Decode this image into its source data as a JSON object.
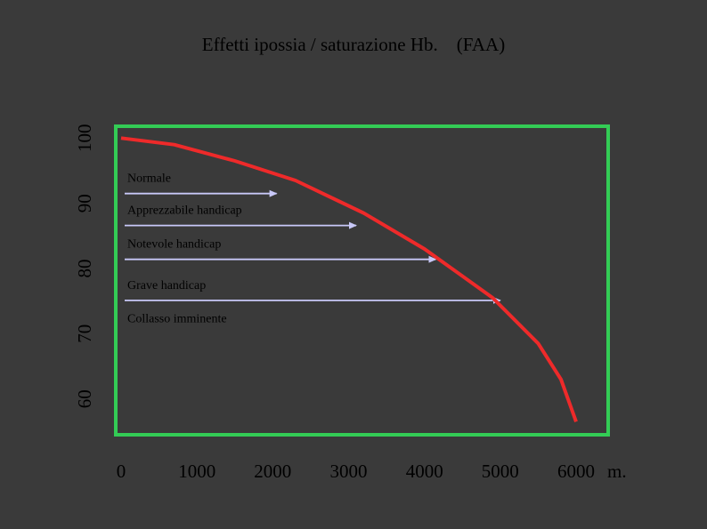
{
  "chart_data": {
    "type": "line",
    "title": "Effetti ipossia / saturazione Hb.    (FAA)",
    "x_unit": "m.",
    "x_ticks": [
      0,
      1000,
      2000,
      3000,
      4000,
      5000,
      6000
    ],
    "y_ticks": [
      60,
      70,
      80,
      90,
      100
    ],
    "xlim": [
      0,
      6000
    ],
    "ylim": [
      56,
      101
    ],
    "series": [
      {
        "x": [
          0,
          700,
          1500,
          2300,
          3200,
          4000,
          4900,
          5500,
          5800,
          6000
        ],
        "values": [
          100,
          99,
          96.5,
          93.5,
          88.5,
          83,
          75.5,
          68.5,
          63,
          56.5
        ]
      }
    ],
    "annotations": [
      {
        "label": "Normale",
        "arrow_to_x": 2050,
        "y": 91.5
      },
      {
        "label": "Apprezzabile handicap",
        "arrow_to_x": 3100,
        "y": 86.6
      },
      {
        "label": "Notevole handicap",
        "arrow_to_x": 4150,
        "y": 81.4
      },
      {
        "label": "Grave handicap",
        "arrow_to_x": 5000,
        "y": 75.1
      },
      {
        "label": "Collasso imminente",
        "arrow_to_x": null,
        "y": 70
      }
    ],
    "colors": {
      "background": "#3a3a3a",
      "frame": "#33cc55",
      "line": "#ee2a2a",
      "arrow": "#c8c8f8",
      "text": "#000000"
    },
    "grid": false,
    "legend": "none"
  }
}
